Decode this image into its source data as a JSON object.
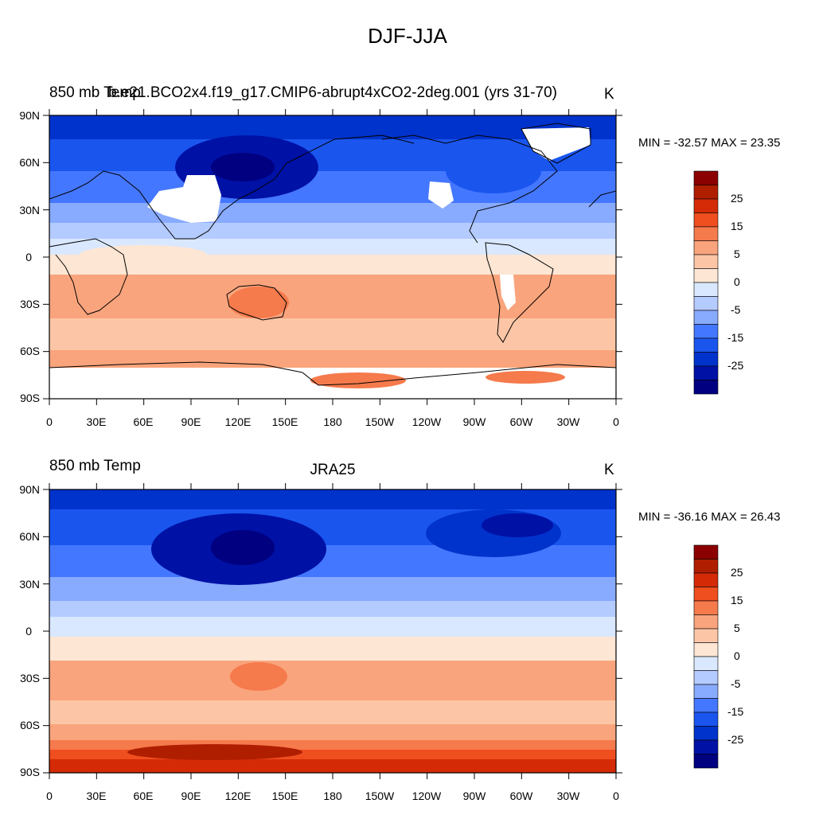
{
  "title": "DJF-JJA",
  "colors": [
    "#000080",
    "#0011a6",
    "#0033cc",
    "#1a55ee",
    "#4477ff",
    "#88aaff",
    "#b4cbff",
    "#d9e8ff",
    "#fde6d4",
    "#fcc6a6",
    "#f9a47c",
    "#f57a4c",
    "#ef4e1f",
    "#d42b06",
    "#b01e00",
    "#8b0000"
  ],
  "colorbar_labels": [
    "25",
    "15",
    "5",
    "0",
    "-5",
    "-15",
    "-25"
  ],
  "lat_labels": [
    "90N",
    "60N",
    "30N",
    "0",
    "30S",
    "60S",
    "90S"
  ],
  "lon_labels": [
    "0",
    "30E",
    "60E",
    "90E",
    "120E",
    "150E",
    "180",
    "150W",
    "120W",
    "90W",
    "60W",
    "30W",
    "0"
  ],
  "panels": [
    {
      "left": "850 mb Temp",
      "center": "b.e21.BCO2x4.f19_g17.CMIP6-abrupt4xCO2-2deg.001 (yrs 31-70)",
      "units": "K",
      "minmax": "MIN = -32.57 MAX =  23.35",
      "min": -32.57,
      "max": 23.35
    },
    {
      "left": "850 mb Temp",
      "center": "JRA25",
      "units": "K",
      "minmax": "MIN = -36.16 MAX =  26.43",
      "min": -36.16,
      "max": 26.43
    }
  ]
}
